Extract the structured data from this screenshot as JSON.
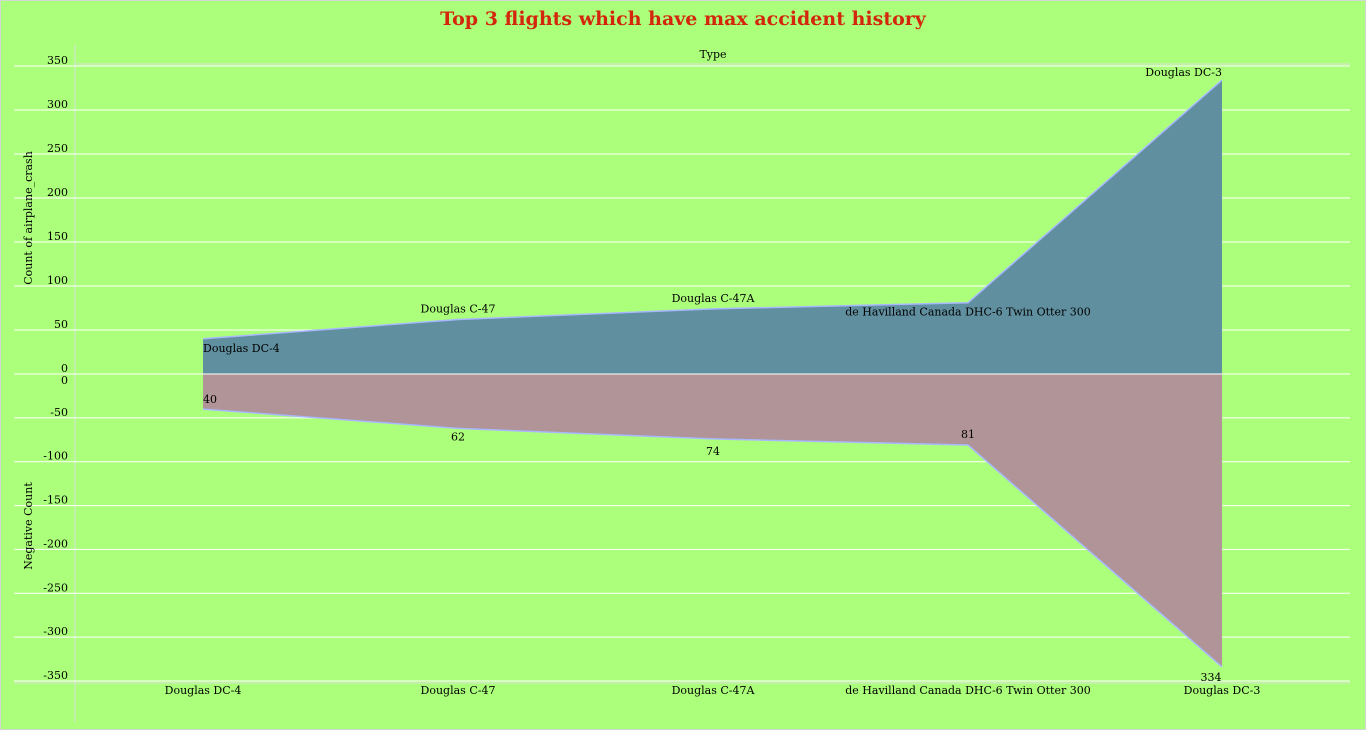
{
  "chart_data": {
    "type": "area",
    "title": "Top 3 flights which have max accident history",
    "column_header": "Type",
    "categories": [
      "Douglas DC-4",
      "Douglas C-47",
      "Douglas C-47A",
      "de Havilland Canada DHC-6 Twin Otter 300",
      "Douglas DC-3"
    ],
    "series": [
      {
        "values": [
          40,
          62,
          74,
          81,
          334
        ],
        "color": "#6090a0"
      },
      {
        "values": [
          -40,
          -62,
          -74,
          -81,
          -334
        ],
        "color": "#b09498"
      }
    ],
    "top_panel": {
      "ylabel": "Count of airplane_crash",
      "ylim": [
        0,
        350
      ],
      "yticks": [
        0,
        50,
        100,
        150,
        200,
        250,
        300,
        350
      ]
    },
    "bottom_panel": {
      "ylabel": "Negative Count",
      "ylim": [
        -350,
        0
      ],
      "yticks": [
        0,
        -50,
        -100,
        -150,
        -200,
        -250,
        -300,
        -350
      ]
    },
    "value_labels": [
      "40",
      "62",
      "74",
      "81",
      "334"
    ],
    "grid": true,
    "legend": "none",
    "colors": {
      "background": "#abff7b",
      "title": "#d4260c",
      "grid": "#ffffff",
      "line": "#a9b7ff"
    }
  }
}
